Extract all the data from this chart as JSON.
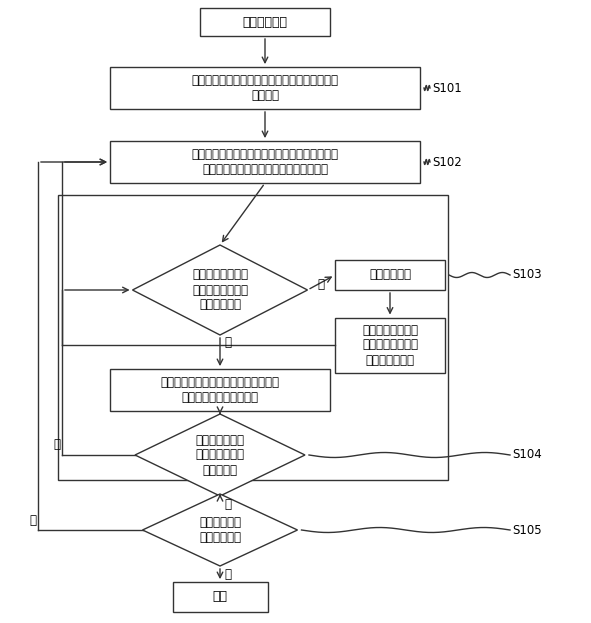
{
  "bg_color": "#ffffff",
  "box_color": "#ffffff",
  "box_edge_color": "#333333",
  "arrow_color": "#333333",
  "line_width": 1.0,
  "nodes": {
    "start_text": "分组操作开始",
    "s101_text": "任一客户端先从服务器获取服务器上当前的分组\n信息数据",
    "s102_text": "多个客户端对待分组对象进行分组，更新本地的\n分组信息数据并将分组结果发送至服务端",
    "d1_text": "服务端对最先收到\n的客户端分组结果\n进行冲突判断",
    "cb_text": "返回冲突提示",
    "cu_text": "客户端更新本地的\n分组信息数据，重\n新提交分组结果",
    "us_text": "按该分组结果更新服务器的分组信息数\n据，并推送至其他客户端",
    "d2_text": "依时间序列判断\n是否有其他分组\n结果未处理",
    "d3_text": "多客户端是否\n继续进行分组",
    "end_text": "结束"
  },
  "labels": {
    "s101": "S101",
    "s102": "S102",
    "s103": "S103",
    "s104": "S104",
    "s105": "S105"
  },
  "yes_text": "是",
  "no_text": "否"
}
